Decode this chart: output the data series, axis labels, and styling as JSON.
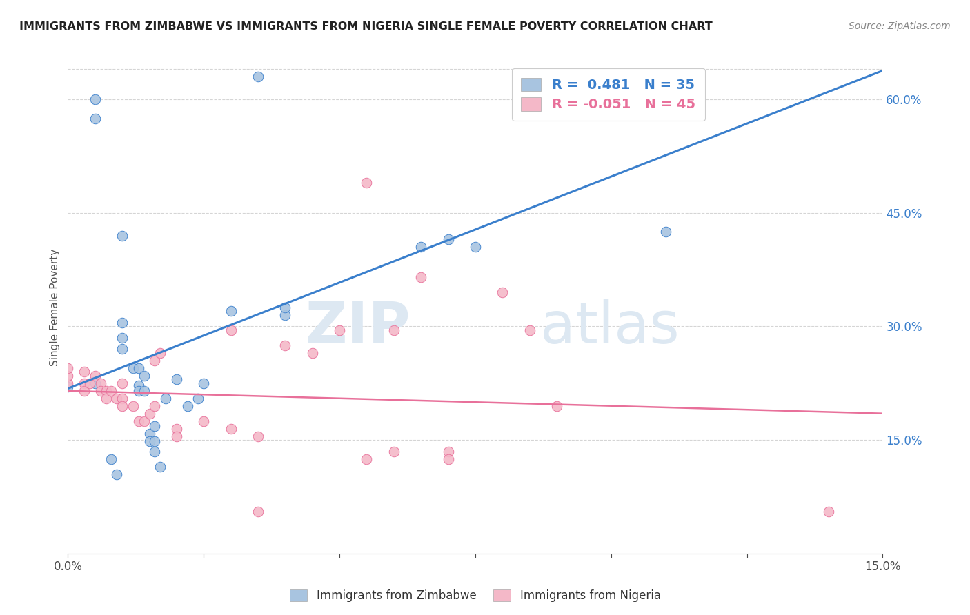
{
  "title": "IMMIGRANTS FROM ZIMBABWE VS IMMIGRANTS FROM NIGERIA SINGLE FEMALE POVERTY CORRELATION CHART",
  "source": "Source: ZipAtlas.com",
  "ylabel": "Single Female Poverty",
  "right_yticks": [
    "15.0%",
    "30.0%",
    "45.0%",
    "60.0%"
  ],
  "right_ytick_vals": [
    0.15,
    0.3,
    0.45,
    0.6
  ],
  "xlim": [
    0.0,
    0.15
  ],
  "ylim": [
    0.0,
    0.65
  ],
  "r_zimbabwe": 0.481,
  "n_zimbabwe": 35,
  "r_nigeria": -0.051,
  "n_nigeria": 45,
  "color_zimbabwe": "#a8c4e0",
  "color_nigeria": "#f4b8c8",
  "line_color_zimbabwe": "#3a7fcc",
  "line_color_nigeria": "#e8709a",
  "line_color_zw_right": "#4a90d9",
  "watermark_zip": "ZIP",
  "watermark_atlas": "atlas",
  "zimbabwe_points": [
    [
      0.0,
      0.22
    ],
    [
      0.005,
      0.575
    ],
    [
      0.005,
      0.6
    ],
    [
      0.01,
      0.42
    ],
    [
      0.01,
      0.305
    ],
    [
      0.01,
      0.285
    ],
    [
      0.01,
      0.27
    ],
    [
      0.012,
      0.245
    ],
    [
      0.013,
      0.245
    ],
    [
      0.013,
      0.222
    ],
    [
      0.013,
      0.215
    ],
    [
      0.014,
      0.215
    ],
    [
      0.014,
      0.235
    ],
    [
      0.015,
      0.158
    ],
    [
      0.015,
      0.148
    ],
    [
      0.016,
      0.135
    ],
    [
      0.016,
      0.168
    ],
    [
      0.016,
      0.148
    ],
    [
      0.017,
      0.115
    ],
    [
      0.018,
      0.205
    ],
    [
      0.02,
      0.23
    ],
    [
      0.022,
      0.195
    ],
    [
      0.024,
      0.205
    ],
    [
      0.025,
      0.225
    ],
    [
      0.03,
      0.32
    ],
    [
      0.035,
      0.63
    ],
    [
      0.04,
      0.315
    ],
    [
      0.04,
      0.325
    ],
    [
      0.065,
      0.405
    ],
    [
      0.07,
      0.415
    ],
    [
      0.075,
      0.405
    ],
    [
      0.11,
      0.425
    ],
    [
      0.005,
      0.225
    ],
    [
      0.008,
      0.125
    ],
    [
      0.009,
      0.105
    ]
  ],
  "nigeria_points": [
    [
      0.0,
      0.225
    ],
    [
      0.0,
      0.235
    ],
    [
      0.0,
      0.245
    ],
    [
      0.003,
      0.24
    ],
    [
      0.003,
      0.225
    ],
    [
      0.003,
      0.215
    ],
    [
      0.004,
      0.225
    ],
    [
      0.005,
      0.235
    ],
    [
      0.006,
      0.225
    ],
    [
      0.006,
      0.215
    ],
    [
      0.007,
      0.215
    ],
    [
      0.007,
      0.205
    ],
    [
      0.008,
      0.215
    ],
    [
      0.009,
      0.205
    ],
    [
      0.01,
      0.225
    ],
    [
      0.01,
      0.205
    ],
    [
      0.01,
      0.195
    ],
    [
      0.012,
      0.195
    ],
    [
      0.013,
      0.175
    ],
    [
      0.014,
      0.175
    ],
    [
      0.015,
      0.185
    ],
    [
      0.016,
      0.195
    ],
    [
      0.016,
      0.255
    ],
    [
      0.017,
      0.265
    ],
    [
      0.02,
      0.165
    ],
    [
      0.02,
      0.155
    ],
    [
      0.025,
      0.175
    ],
    [
      0.03,
      0.295
    ],
    [
      0.03,
      0.165
    ],
    [
      0.035,
      0.155
    ],
    [
      0.04,
      0.275
    ],
    [
      0.045,
      0.265
    ],
    [
      0.05,
      0.295
    ],
    [
      0.055,
      0.125
    ],
    [
      0.06,
      0.295
    ],
    [
      0.06,
      0.135
    ],
    [
      0.065,
      0.365
    ],
    [
      0.07,
      0.135
    ],
    [
      0.07,
      0.125
    ],
    [
      0.08,
      0.345
    ],
    [
      0.085,
      0.295
    ],
    [
      0.09,
      0.195
    ],
    [
      0.055,
      0.49
    ],
    [
      0.14,
      0.055
    ],
    [
      0.035,
      0.055
    ]
  ],
  "zw_line_x": [
    0.0,
    0.15
  ],
  "zw_line_y": [
    0.218,
    0.638
  ],
  "ng_line_x": [
    0.0,
    0.15
  ],
  "ng_line_y": [
    0.215,
    0.185
  ]
}
